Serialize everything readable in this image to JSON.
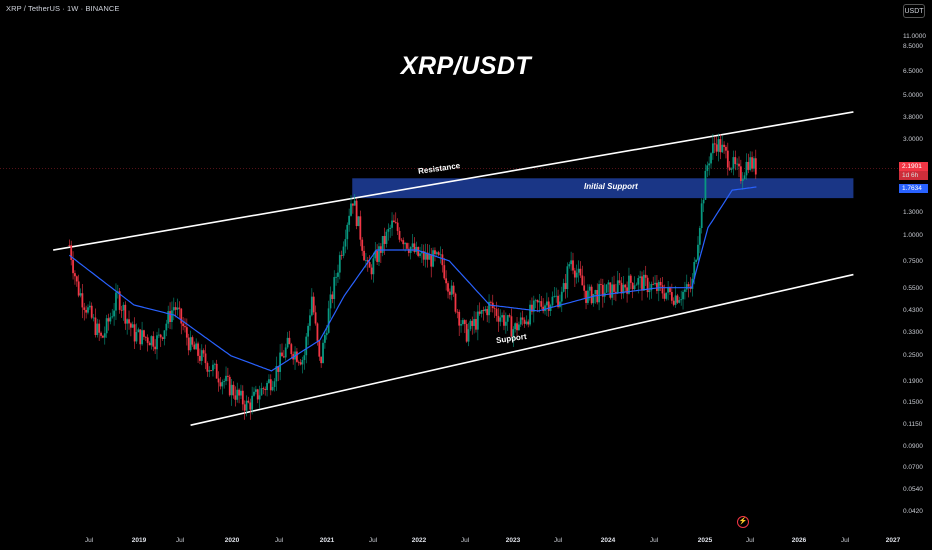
{
  "header": {
    "symbol_info": "XRP / TetherUS · 1W · BINANCE",
    "currency_button": "USDT"
  },
  "title": "XRP/USDT",
  "annotations": {
    "resistance": "Resistance",
    "support": "Support",
    "initial_support": "Initial Support"
  },
  "price_badges": {
    "last_price": "2.1901",
    "countdown": "1d 6h",
    "ma_value": "1.7634"
  },
  "y_axis_ticks": [
    "11.0000",
    "8.5000",
    "6.5000",
    "5.0000",
    "3.8000",
    "3.0000",
    "1.3000",
    "1.0000",
    "0.7500",
    "0.5500",
    "0.4300",
    "0.3300",
    "0.2500",
    "0.1900",
    "0.1500",
    "0.1150",
    "0.0900",
    "0.0700",
    "0.0540",
    "0.0420"
  ],
  "x_axis_ticks": [
    "Jul",
    "2019",
    "Jul",
    "2020",
    "Jul",
    "2021",
    "Jul",
    "2022",
    "Jul",
    "2023",
    "Jul",
    "2024",
    "Jul",
    "2025",
    "Jul",
    "2026",
    "Jul",
    "2027"
  ],
  "icons": {
    "flash_icon": "lightning-icon"
  },
  "colors": {
    "up": "#089981",
    "down": "#f23645",
    "ma": "#2962ff",
    "zone": "#1e3a8a",
    "background": "#000000"
  },
  "chart_data": {
    "type": "candlestick",
    "scale": "log",
    "ylim": [
      0.04,
      14
    ],
    "x_range": [
      "2018-04",
      "2027-01"
    ],
    "price_path": [
      [
        "2018-05",
        0.9
      ],
      [
        "2018-06",
        0.55
      ],
      [
        "2018-09",
        0.3
      ],
      [
        "2018-11",
        0.5
      ],
      [
        "2019-01",
        0.32
      ],
      [
        "2019-04",
        0.3
      ],
      [
        "2019-06",
        0.45
      ],
      [
        "2019-08",
        0.28
      ],
      [
        "2019-12",
        0.19
      ],
      [
        "2020-03",
        0.14
      ],
      [
        "2020-06",
        0.19
      ],
      [
        "2020-08",
        0.28
      ],
      [
        "2020-10",
        0.24
      ],
      [
        "2020-11",
        0.5
      ],
      [
        "2020-12",
        0.22
      ],
      [
        "2021-01",
        0.4
      ],
      [
        "2021-04",
        1.6
      ],
      [
        "2021-06",
        0.65
      ],
      [
        "2021-09",
        1.15
      ],
      [
        "2021-12",
        0.8
      ],
      [
        "2022-03",
        0.75
      ],
      [
        "2022-06",
        0.32
      ],
      [
        "2022-09",
        0.45
      ],
      [
        "2022-12",
        0.34
      ],
      [
        "2023-03",
        0.45
      ],
      [
        "2023-06",
        0.5
      ],
      [
        "2023-07",
        0.78
      ],
      [
        "2023-09",
        0.5
      ],
      [
        "2024-01",
        0.55
      ],
      [
        "2024-03",
        0.6
      ],
      [
        "2024-08",
        0.5
      ],
      [
        "2024-10",
        0.55
      ],
      [
        "2024-11",
        1.2
      ],
      [
        "2024-12",
        2.4
      ],
      [
        "2025-01",
        3.0
      ],
      [
        "2025-03",
        2.3
      ],
      [
        "2025-04",
        2.0
      ],
      [
        "2025-05",
        2.4
      ],
      [
        "2025-06",
        2.19
      ]
    ],
    "moving_average": [
      [
        "2018-05",
        0.8
      ],
      [
        "2019-01",
        0.45
      ],
      [
        "2019-06",
        0.4
      ],
      [
        "2020-01",
        0.25
      ],
      [
        "2020-06",
        0.21
      ],
      [
        "2020-12",
        0.3
      ],
      [
        "2021-03",
        0.5
      ],
      [
        "2021-07",
        0.85
      ],
      [
        "2021-12",
        0.85
      ],
      [
        "2022-04",
        0.75
      ],
      [
        "2022-09",
        0.45
      ],
      [
        "2023-03",
        0.42
      ],
      [
        "2023-10",
        0.5
      ],
      [
        "2024-06",
        0.55
      ],
      [
        "2024-10",
        0.55
      ],
      [
        "2024-12",
        1.1
      ],
      [
        "2025-03",
        1.7
      ],
      [
        "2025-06",
        1.7634
      ]
    ],
    "resistance_line": [
      [
        "2018-03",
        0.85
      ],
      [
        "2026-06",
        4.2
      ]
    ],
    "support_line": [
      [
        "2019-08",
        0.112
      ],
      [
        "2026-06",
        0.64
      ]
    ],
    "initial_support_zone": {
      "from": "2021-04",
      "to": "2026-06",
      "low": 1.55,
      "high": 1.95
    },
    "current_price": 2.1901
  }
}
